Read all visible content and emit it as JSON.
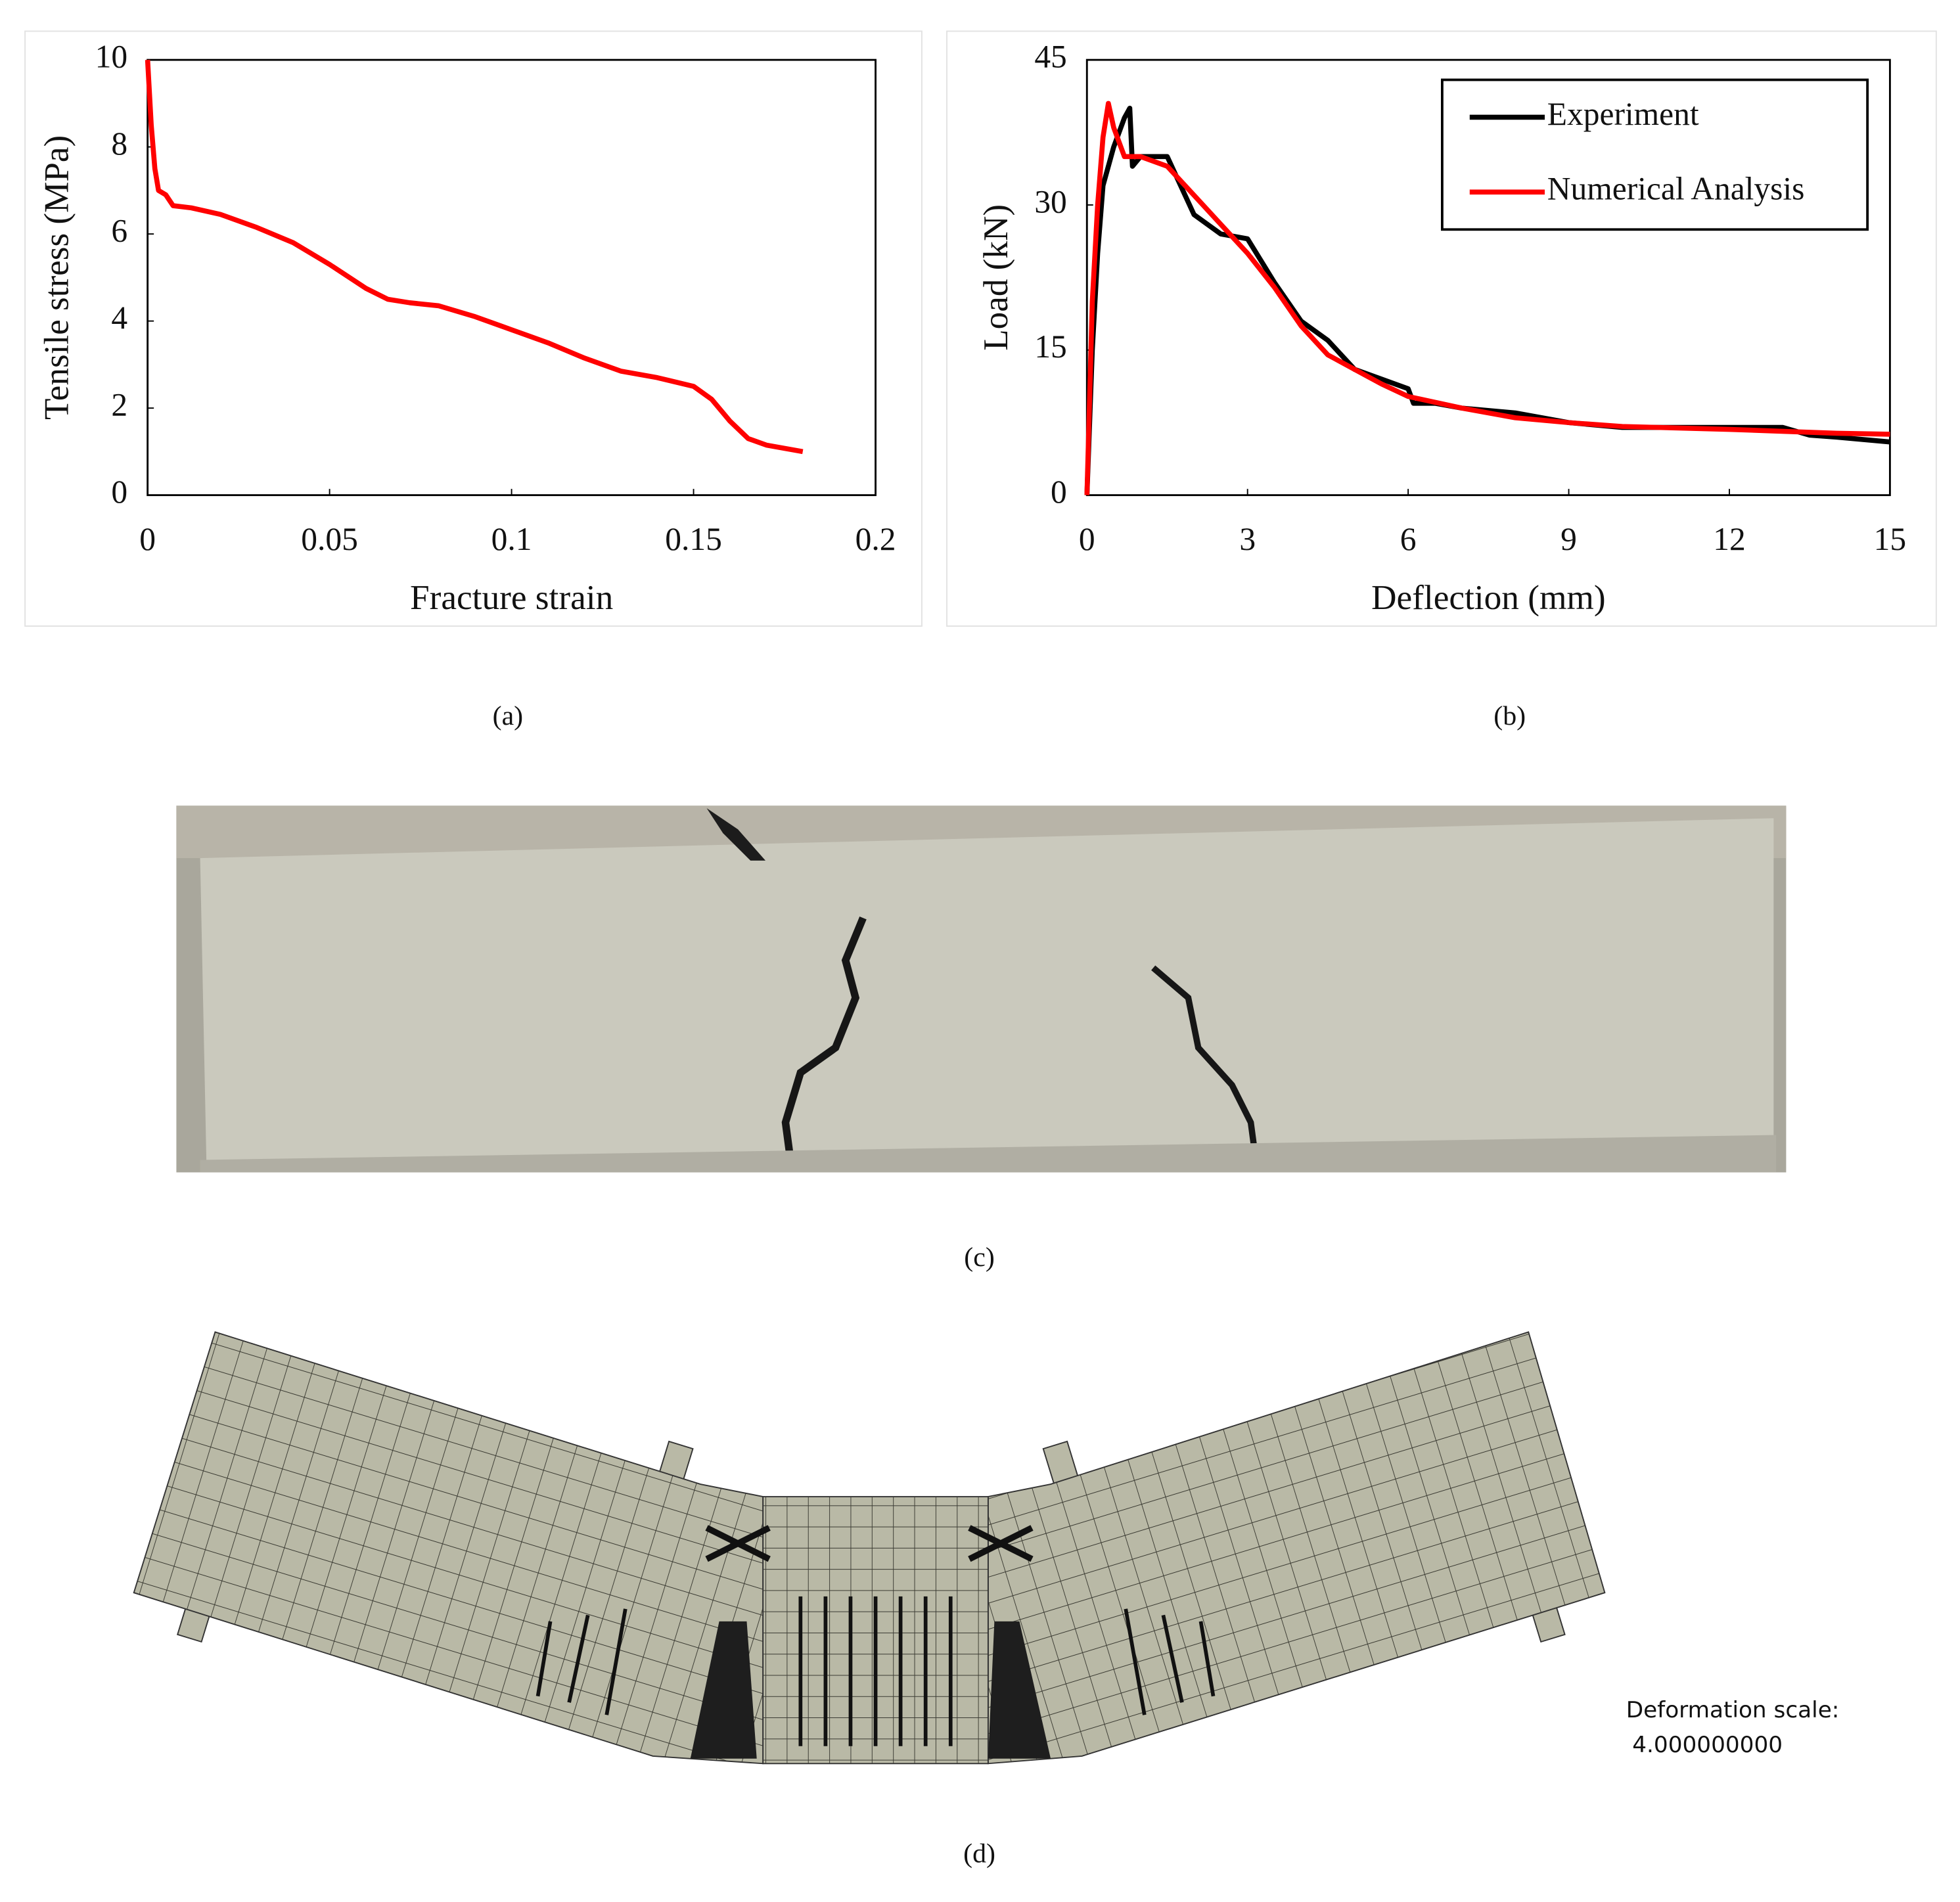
{
  "chart_data": [
    {
      "type": "line",
      "ylabel": "Tensile stress (MPa)",
      "xlabel": "Fracture strain",
      "xlim": [
        0,
        0.2
      ],
      "ylim": [
        0,
        10
      ],
      "xticks": [
        0,
        0.05,
        0.1,
        0.15,
        0.2
      ],
      "yticks": [
        0,
        2,
        4,
        6,
        8,
        10
      ],
      "color": "#ff0000",
      "x": [
        0,
        0.001,
        0.002,
        0.003,
        0.005,
        0.007,
        0.012,
        0.02,
        0.03,
        0.04,
        0.05,
        0.06,
        0.066,
        0.072,
        0.08,
        0.09,
        0.1,
        0.11,
        0.12,
        0.13,
        0.14,
        0.15,
        0.155,
        0.16,
        0.165,
        0.17,
        0.18
      ],
      "values": [
        10,
        8.5,
        7.5,
        7.0,
        6.9,
        6.65,
        6.6,
        6.45,
        6.15,
        5.8,
        5.3,
        4.75,
        4.5,
        4.42,
        4.35,
        4.1,
        3.8,
        3.5,
        3.15,
        2.85,
        2.7,
        2.5,
        2.2,
        1.7,
        1.3,
        1.15,
        1.0
      ]
    },
    {
      "type": "line",
      "ylabel": "Load (kN)",
      "xlabel": "Deflection (mm)",
      "xlim": [
        0,
        15
      ],
      "ylim": [
        0,
        45
      ],
      "xticks": [
        0,
        3,
        6,
        9,
        12,
        15
      ],
      "yticks": [
        0,
        15,
        30,
        45
      ],
      "legend": "upper right",
      "series": [
        {
          "name": "Experiment",
          "color": "#000000",
          "x": [
            0,
            0.1,
            0.2,
            0.3,
            0.5,
            0.7,
            0.8,
            0.85,
            1.0,
            1.5,
            2,
            2.5,
            3,
            3.5,
            4,
            4.5,
            5,
            5.5,
            6,
            6.1,
            6.5,
            7,
            8,
            9,
            10,
            11,
            12,
            13,
            13.5,
            14,
            15
          ],
          "values": [
            0,
            15,
            25,
            32,
            36,
            39,
            40,
            34,
            35,
            35,
            29,
            27,
            26.5,
            22,
            18,
            16,
            13,
            12,
            11,
            9.5,
            9.5,
            9,
            8.5,
            7.5,
            7,
            7,
            7,
            7,
            6.2,
            6,
            5.5
          ]
        },
        {
          "name": "Numerical Analysis",
          "color": "#ff0000",
          "x": [
            0,
            0.1,
            0.2,
            0.3,
            0.4,
            0.5,
            0.7,
            1,
            1.5,
            2,
            2.5,
            3,
            3.5,
            4,
            4.5,
            5,
            5.5,
            6,
            7,
            8,
            9,
            10,
            12,
            14,
            15
          ],
          "values": [
            0,
            20,
            30,
            37,
            40.5,
            38,
            35,
            35,
            34,
            31,
            28,
            25,
            21.5,
            17.5,
            14.5,
            13,
            11.5,
            10.2,
            9,
            8,
            7.5,
            7.1,
            6.8,
            6.4,
            6.3
          ]
        }
      ]
    }
  ],
  "captions": [
    "(a)",
    "(b)",
    "(c)",
    "(d)"
  ],
  "deformation": {
    "label": "Deformation scale:",
    "value": "4.000000000"
  }
}
